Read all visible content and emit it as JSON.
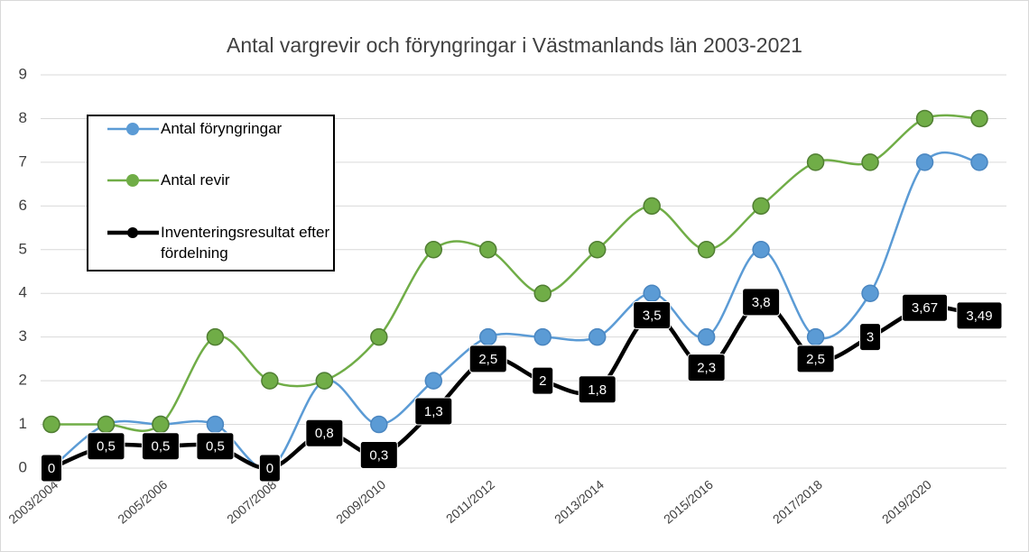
{
  "chart_data": {
    "type": "line",
    "title": "Antal vargrevir och föryngringar i Västmanlands län 2003-2021",
    "categories": [
      "2003/2004",
      null,
      "2005/2006",
      null,
      "2007/2008",
      null,
      "2009/2010",
      null,
      "2011/2012",
      null,
      "2013/2014",
      null,
      "2015/2016",
      null,
      "2017/2018",
      null,
      "2019/2020",
      null
    ],
    "series": [
      {
        "name": "Antal föryngringar",
        "color": "#5b9bd5",
        "values": [
          0,
          1,
          1,
          1,
          0,
          2,
          1,
          2,
          3,
          3,
          3,
          4,
          3,
          5,
          3,
          4,
          7,
          7
        ]
      },
      {
        "name": "Antal revir",
        "color": "#70ad47",
        "values": [
          1,
          1,
          1,
          3,
          2,
          2,
          3,
          5,
          5,
          4,
          5,
          6,
          5,
          6,
          7,
          7,
          8,
          8
        ]
      },
      {
        "name": "Inventeringsresultat efter fördelning",
        "color": "#000000",
        "values": [
          0,
          0.5,
          0.5,
          0.5,
          0,
          0.8,
          0.3,
          1.3,
          2.5,
          2,
          1.8,
          3.5,
          2.3,
          3.8,
          2.5,
          3,
          3.67,
          3.49
        ],
        "value_labels": [
          "0",
          "0,5",
          "0,5",
          "0,5",
          "0",
          "0,8",
          "0,3",
          "1,3",
          "2,5",
          "2",
          "1,8",
          "3,5",
          "2,3",
          "3,8",
          "2,5",
          "3",
          "3,67",
          "3,49"
        ]
      }
    ],
    "ylim": [
      0,
      9
    ],
    "yticks": [
      0,
      1,
      2,
      3,
      4,
      5,
      6,
      7,
      8,
      9
    ],
    "grid": true,
    "legend": "left",
    "smooth": true
  }
}
